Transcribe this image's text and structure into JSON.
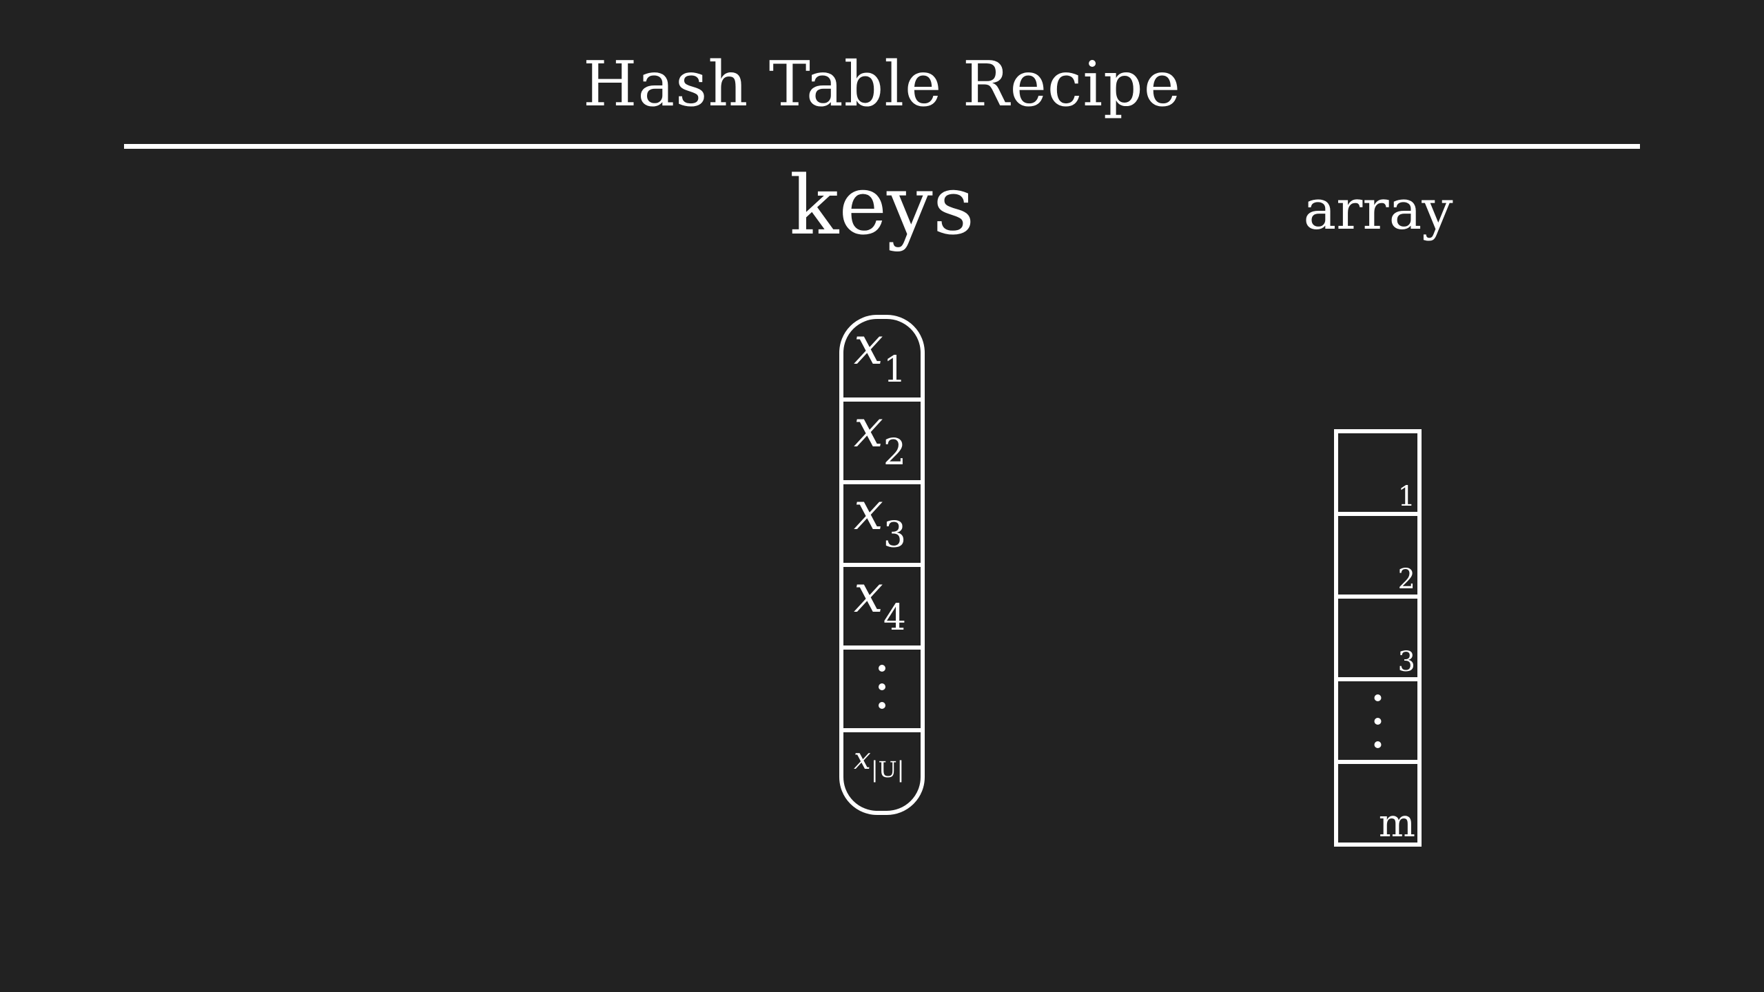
{
  "title": "Hash Table Recipe",
  "keys": {
    "heading": "keys",
    "cells": [
      {
        "base": "x",
        "sub": "1"
      },
      {
        "base": "x",
        "sub": "2"
      },
      {
        "base": "x",
        "sub": "3"
      },
      {
        "base": "x",
        "sub": "4"
      },
      {
        "ellipsis": true
      },
      {
        "base": "x",
        "sub": "|U|"
      }
    ]
  },
  "array": {
    "heading": "array",
    "slots": [
      {
        "label": "1"
      },
      {
        "label": "2"
      },
      {
        "label": "3"
      },
      {
        "ellipsis": true
      },
      {
        "label": "m"
      }
    ]
  },
  "colors": {
    "background": "#222222",
    "foreground": "#ffffff"
  }
}
